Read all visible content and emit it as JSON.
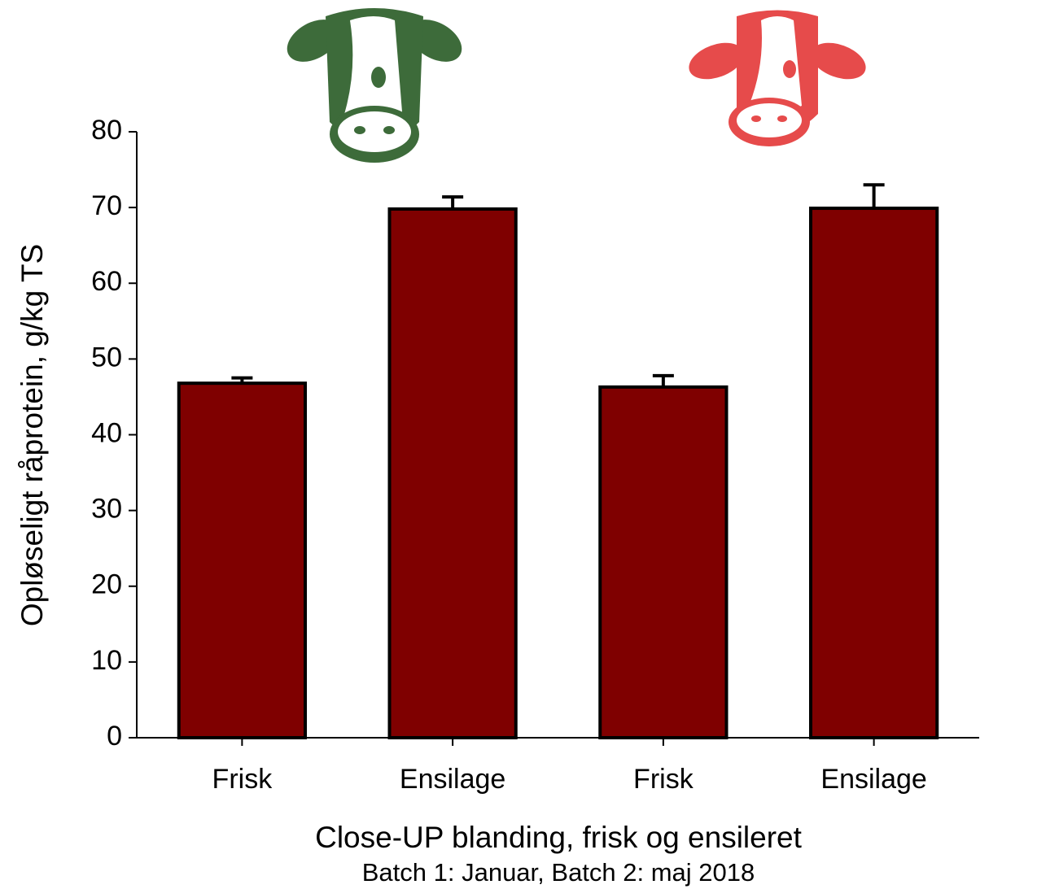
{
  "chart_data": {
    "type": "bar",
    "ylabel": "Opløseligt råprotein, g/kg TS",
    "xlabel": "Close-UP blanding, frisk og ensileret",
    "subtitle": "Batch 1: Januar, Batch 2: maj 2018",
    "categories": [
      "Frisk",
      "Ensilage",
      "Frisk",
      "Ensilage"
    ],
    "values": [
      46.8,
      69.8,
      46.3,
      69.9
    ],
    "errors": [
      0.7,
      1.6,
      1.5,
      3.1
    ],
    "color": "#7f0000",
    "ylim": [
      0,
      80
    ],
    "yticks": [
      0,
      10,
      20,
      30,
      40,
      50,
      60,
      70,
      80
    ]
  }
}
